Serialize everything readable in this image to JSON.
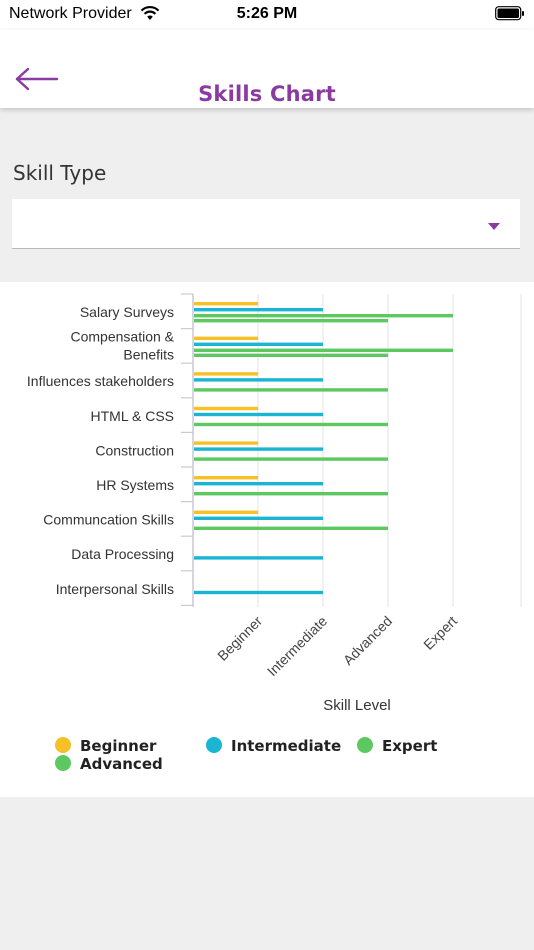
{
  "status_bar": {
    "carrier": "Network Provider",
    "time": "5:26 PM"
  },
  "header": {
    "title": "Skills Chart",
    "back_icon": "arrow-left-icon"
  },
  "skill_type": {
    "label": "Skill Type",
    "value": "",
    "dropdown_icon": "caret-down-icon"
  },
  "colors": {
    "accent": "#8a3aa0",
    "beginner": "#f6c026",
    "intermediate": "#1ab5d3",
    "advanced": "#5dc860",
    "expert": "#5dc860"
  },
  "chart_data": {
    "type": "bar",
    "orientation": "horizontal",
    "xlabel": "Skill Level",
    "x_tick_labels": [
      "Beginner",
      "Intermediate",
      "Advanced",
      "Expert"
    ],
    "xlim": [
      0,
      5
    ],
    "grid": true,
    "legend_position": "bottom",
    "categories": [
      "Salary Surveys",
      "Compensation & Benefits",
      "Influences stakeholders",
      "HTML & CSS",
      "Construction",
      "HR Systems",
      "Communcation Skills",
      "Data Processing",
      "Interpersonal Skills"
    ],
    "series": [
      {
        "name": "Beginner",
        "color": "#f6c026",
        "values": [
          1,
          1,
          1,
          1,
          1,
          1,
          1,
          null,
          null
        ]
      },
      {
        "name": "Intermediate",
        "color": "#1ab5d3",
        "values": [
          2,
          2,
          2,
          2,
          2,
          2,
          2,
          2,
          2
        ]
      },
      {
        "name": "Expert",
        "color": "#5dc860",
        "values": [
          4,
          4,
          null,
          null,
          null,
          null,
          null,
          null,
          null
        ]
      },
      {
        "name": "Advanced",
        "color": "#5dc860",
        "values": [
          3,
          3,
          3,
          3,
          3,
          3,
          3,
          null,
          null
        ]
      }
    ]
  },
  "legend": [
    {
      "label": "Beginner",
      "color": "#f6c026"
    },
    {
      "label": "Intermediate",
      "color": "#1ab5d3"
    },
    {
      "label": "Expert",
      "color": "#5dc860"
    },
    {
      "label": "Advanced",
      "color": "#5dc860"
    }
  ]
}
